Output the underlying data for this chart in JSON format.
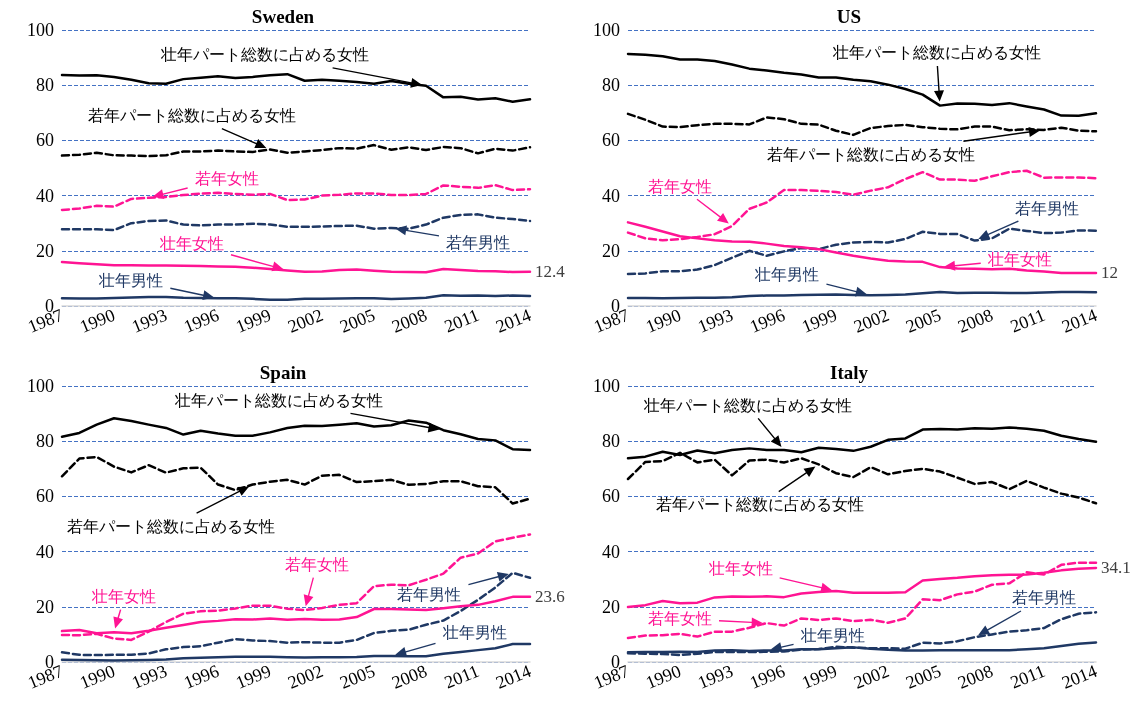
{
  "chart_data": [
    {
      "type": "line",
      "title": "Sweden",
      "x": [
        1987,
        1988,
        1989,
        1990,
        1991,
        1992,
        1993,
        1994,
        1995,
        1996,
        1997,
        1998,
        1999,
        2000,
        2001,
        2002,
        2003,
        2004,
        2005,
        2006,
        2007,
        2008,
        2009,
        2010,
        2011,
        2012,
        2013,
        2014
      ],
      "xlim": [
        1987,
        2014
      ],
      "xticks": [
        1987,
        1990,
        1993,
        1996,
        1999,
        2002,
        2005,
        2008,
        2011,
        2014
      ],
      "ylim": [
        0,
        100
      ],
      "yticks": [
        0,
        20,
        40,
        60,
        80,
        100
      ],
      "grid": "y",
      "series": [
        {
          "name": "壮年パート総数に占める女性",
          "color": "#000000",
          "line_style": "solid",
          "values": [
            83.7,
            83.5,
            83.6,
            83,
            82,
            80.7,
            80.5,
            82.2,
            82.7,
            83.2,
            82.6,
            83,
            83.6,
            84,
            81.6,
            82,
            81.6,
            81.2,
            80.5,
            81.5,
            80.5,
            79.8,
            75.6,
            75.8,
            74.8,
            75.3,
            74,
            74.9
          ]
        },
        {
          "name": "若年パート総数に占める女性",
          "color": "#000000",
          "line_style": "dashed",
          "values": [
            54.5,
            54.8,
            55.5,
            54.6,
            54.5,
            54.3,
            54.6,
            56,
            56,
            56.3,
            56,
            55.8,
            56.7,
            55.5,
            56,
            56.5,
            57.2,
            57,
            58.3,
            56.6,
            57.5,
            56.5,
            57.6,
            57.2,
            55.3,
            57,
            56.3,
            57.5
          ]
        },
        {
          "name": "若年女性",
          "color": "#ff1493",
          "line_style": "dashed",
          "values": [
            34.8,
            35.3,
            36.3,
            36,
            38.8,
            39.2,
            39.5,
            40.2,
            40.7,
            41,
            40.6,
            40.3,
            40.6,
            38.4,
            38.6,
            40,
            40.3,
            40.8,
            40.8,
            40.2,
            40.2,
            40.6,
            43.7,
            43.2,
            42.8,
            43.8,
            42,
            42.3
          ]
        },
        {
          "name": "若年男性",
          "color": "#1f3864",
          "line_style": "dashed",
          "values": [
            27.8,
            27.8,
            27.8,
            27.5,
            30,
            30.8,
            31,
            29.5,
            29.2,
            29.5,
            29.5,
            29.8,
            29.5,
            28.7,
            28.7,
            28.8,
            29,
            29.1,
            28,
            28.3,
            28,
            29.5,
            32,
            33,
            33.2,
            32,
            31.5,
            30.8
          ]
        },
        {
          "name": "壮年女性",
          "color": "#ff1493",
          "line_style": "solid",
          "values": [
            15.9,
            15.5,
            15.1,
            14.8,
            14.8,
            14.7,
            14.7,
            14.6,
            14.5,
            14.3,
            14.2,
            13.9,
            13.4,
            12.9,
            12.4,
            12.5,
            13,
            13.2,
            12.8,
            12.4,
            12.3,
            12.2,
            13.4,
            13,
            12.7,
            12.6,
            12.3,
            12.4
          ],
          "value_labels": [
            null,
            null,
            null,
            null,
            null,
            null,
            null,
            null,
            null,
            null,
            null,
            null,
            null,
            null,
            null,
            null,
            null,
            null,
            null,
            null,
            null,
            null,
            null,
            null,
            null,
            null,
            null,
            "12.4"
          ]
        },
        {
          "name": "壮年男性",
          "color": "#1f3864",
          "line_style": "solid",
          "values": [
            2.8,
            2.7,
            2.7,
            2.9,
            3.1,
            3.3,
            3.3,
            3,
            2.9,
            2.8,
            2.8,
            2.6,
            2.3,
            2.3,
            2.6,
            2.6,
            2.7,
            2.8,
            2.8,
            2.5,
            2.7,
            3,
            3.9,
            3.7,
            3.8,
            3.6,
            3.8,
            3.6
          ]
        }
      ]
    },
    {
      "type": "line",
      "title": "US",
      "x": [
        1987,
        1988,
        1989,
        1990,
        1991,
        1992,
        1993,
        1994,
        1995,
        1996,
        1997,
        1998,
        1999,
        2000,
        2001,
        2002,
        2003,
        2004,
        2005,
        2006,
        2007,
        2008,
        2009,
        2010,
        2011,
        2012,
        2013,
        2014
      ],
      "xlim": [
        1987,
        2014
      ],
      "xticks": [
        1987,
        1990,
        1993,
        1996,
        1999,
        2002,
        2005,
        2008,
        2011,
        2014
      ],
      "ylim": [
        0,
        100
      ],
      "yticks": [
        0,
        20,
        40,
        60,
        80,
        100
      ],
      "grid": "y",
      "series": [
        {
          "name": "壮年パート総数に占める女性",
          "color": "#000000",
          "line_style": "solid",
          "values": [
            91.3,
            91,
            90.5,
            89.3,
            89.3,
            88.8,
            87.5,
            86,
            85.3,
            84.5,
            83.9,
            82.8,
            82.8,
            82,
            81.4,
            80.2,
            78.6,
            76.6,
            72.6,
            73.4,
            73.3,
            72.8,
            73.5,
            72.3,
            71.2,
            69,
            68.9,
            69.8
          ]
        },
        {
          "name": "若年パート総数に占める女性",
          "color": "#000000",
          "line_style": "dashed",
          "values": [
            69.6,
            67.5,
            65,
            64.8,
            65.5,
            66,
            66,
            65.8,
            68.3,
            67.7,
            66,
            65.7,
            63.5,
            62,
            64.5,
            65.2,
            65.6,
            64.8,
            64.2,
            64,
            65,
            65,
            63.7,
            64,
            63.8,
            64.6,
            63.5,
            63.3
          ]
        },
        {
          "name": "若年女性",
          "color": "#ff1493",
          "line_style": "dashed",
          "values": [
            26.6,
            24.5,
            23.8,
            24.2,
            25,
            26,
            29,
            35.2,
            37.5,
            42,
            42,
            41.7,
            41.3,
            40.3,
            41.8,
            43,
            46,
            48.5,
            45.8,
            45.8,
            45.4,
            47,
            48.5,
            49,
            46.5,
            46.6,
            46.6,
            46.3
          ]
        },
        {
          "name": "若年男性",
          "color": "#1f3864",
          "line_style": "dashed",
          "values": [
            11.6,
            11.8,
            12.6,
            12.6,
            13.2,
            14.8,
            17.5,
            20,
            18.2,
            19.8,
            21,
            20.6,
            22.2,
            23,
            23.2,
            23,
            24.3,
            26.9,
            26.1,
            26.1,
            23.7,
            24.5,
            28,
            27.2,
            26.4,
            26.6,
            27.4,
            27.3
          ]
        },
        {
          "name": "壮年女性",
          "color": "#ff1493",
          "line_style": "solid",
          "values": [
            30.3,
            28.7,
            27,
            25.3,
            24.5,
            23.8,
            23.4,
            23.3,
            22.6,
            21.7,
            21.3,
            20.6,
            19.4,
            18.2,
            17.2,
            16.4,
            16.1,
            16,
            14.1,
            13.6,
            13.5,
            13.3,
            13.5,
            12.9,
            12.5,
            12,
            12,
            12
          ],
          "value_labels": [
            null,
            null,
            null,
            null,
            null,
            null,
            null,
            null,
            null,
            null,
            null,
            null,
            null,
            null,
            null,
            null,
            null,
            null,
            null,
            null,
            null,
            null,
            null,
            null,
            null,
            null,
            null,
            "12"
          ]
        },
        {
          "name": "壮年男性",
          "color": "#1f3864",
          "line_style": "solid",
          "values": [
            2.9,
            2.9,
            2.8,
            2.9,
            3,
            3,
            3.2,
            3.6,
            3.8,
            3.8,
            4,
            4.1,
            4.2,
            4,
            3.9,
            4,
            4.2,
            4.6,
            5.1,
            4.7,
            4.8,
            4.8,
            4.7,
            4.7,
            4.9,
            5.1,
            5.1,
            5
          ]
        }
      ]
    },
    {
      "type": "line",
      "title": "Spain",
      "x": [
        1987,
        1988,
        1989,
        1990,
        1991,
        1992,
        1993,
        1994,
        1995,
        1996,
        1997,
        1998,
        1999,
        2000,
        2001,
        2002,
        2003,
        2004,
        2005,
        2006,
        2007,
        2008,
        2009,
        2010,
        2011,
        2012,
        2013,
        2014
      ],
      "xlim": [
        1987,
        2014
      ],
      "xticks": [
        1987,
        1990,
        1993,
        1996,
        1999,
        2002,
        2005,
        2008,
        2011,
        2014
      ],
      "ylim": [
        0,
        100
      ],
      "yticks": [
        0,
        20,
        40,
        60,
        80,
        100
      ],
      "grid": "y",
      "series": [
        {
          "name": "壮年パート総数に占める女性",
          "color": "#000000",
          "line_style": "solid",
          "values": [
            81.6,
            83,
            86,
            88.3,
            87.3,
            86,
            84.8,
            82.4,
            83.8,
            82.8,
            82,
            82,
            83.2,
            84.8,
            85.6,
            85.5,
            86,
            86.5,
            85.3,
            85.8,
            87.5,
            86.7,
            84,
            82.5,
            80.8,
            80.3,
            77.1,
            76.8
          ]
        },
        {
          "name": "若年パート総数に占める女性",
          "color": "#000000",
          "line_style": "dashed",
          "values": [
            67.3,
            73.7,
            74.3,
            70.8,
            68.7,
            71.3,
            68.6,
            70.2,
            70.4,
            64.3,
            62.3,
            64.3,
            65.3,
            66,
            64.3,
            67.5,
            67.8,
            65.2,
            65.5,
            66,
            64.2,
            64.5,
            65.5,
            65.5,
            63.7,
            63.3,
            57.4,
            59.2
          ]
        },
        {
          "name": "若年女性",
          "color": "#ff1493",
          "line_style": "dashed",
          "values": [
            9.8,
            9.7,
            10.2,
            8.5,
            8,
            11,
            14.5,
            17.5,
            18.4,
            18.6,
            19.4,
            20.4,
            20.4,
            19.3,
            18.8,
            19.6,
            20.7,
            21.3,
            27.5,
            28,
            27.8,
            29.8,
            32,
            37.8,
            39.3,
            43.7,
            45,
            46.2
          ]
        },
        {
          "name": "若年男性",
          "color": "#1f3864",
          "line_style": "dashed",
          "values": [
            3.5,
            2.6,
            2.5,
            2.6,
            2.6,
            3.1,
            4.6,
            5.4,
            5.7,
            7,
            8.3,
            7.8,
            7.6,
            7,
            7.2,
            7,
            7,
            8,
            10.5,
            11.3,
            11.7,
            13.5,
            15,
            18.5,
            22.5,
            27,
            32.3,
            30.5
          ]
        },
        {
          "name": "壮年女性",
          "color": "#ff1493",
          "line_style": "solid",
          "values": [
            11.2,
            11.6,
            10.4,
            10.8,
            10.4,
            11.3,
            12.4,
            13.4,
            14.5,
            14.9,
            15.5,
            15.4,
            15.8,
            15.3,
            15.6,
            15.3,
            15.4,
            16.3,
            19.2,
            19.2,
            19,
            18.8,
            19.5,
            20.2,
            20.7,
            22,
            23.6,
            23.6
          ],
          "value_labels": [
            null,
            null,
            null,
            null,
            null,
            null,
            null,
            null,
            null,
            null,
            null,
            null,
            null,
            null,
            null,
            null,
            null,
            null,
            null,
            null,
            null,
            null,
            null,
            null,
            null,
            null,
            null,
            "23.6"
          ]
        },
        {
          "name": "壮年男性",
          "color": "#1f3864",
          "line_style": "solid",
          "values": [
            0.8,
            0.7,
            0.6,
            0.5,
            0.6,
            0.7,
            0.9,
            1.4,
            1.5,
            1.7,
            1.9,
            1.9,
            1.9,
            1.7,
            1.6,
            1.7,
            1.7,
            1.8,
            2.2,
            2.2,
            2.1,
            2.1,
            3,
            3.6,
            4.3,
            5,
            6.5,
            6.5
          ]
        }
      ]
    },
    {
      "type": "line",
      "title": "Italy",
      "x": [
        1987,
        1988,
        1989,
        1990,
        1991,
        1992,
        1993,
        1994,
        1995,
        1996,
        1997,
        1998,
        1999,
        2000,
        2001,
        2002,
        2003,
        2004,
        2005,
        2006,
        2007,
        2008,
        2009,
        2010,
        2011,
        2012,
        2013,
        2014
      ],
      "xlim": [
        1987,
        2014
      ],
      "xticks": [
        1987,
        1990,
        1993,
        1996,
        1999,
        2002,
        2005,
        2008,
        2011,
        2014
      ],
      "ylim": [
        0,
        100
      ],
      "yticks": [
        0,
        20,
        40,
        60,
        80,
        100
      ],
      "grid": "y",
      "series": [
        {
          "name": "壮年パート総数に占める女性",
          "color": "#000000",
          "line_style": "solid",
          "values": [
            73.8,
            74.4,
            76.2,
            75,
            76.6,
            75.6,
            76.8,
            77.4,
            76.8,
            76.8,
            76,
            77.6,
            77.2,
            76.5,
            78,
            80.5,
            81,
            84.2,
            84.4,
            84.2,
            84.7,
            84.5,
            85,
            84.5,
            83.8,
            82,
            80.8,
            79.8
          ]
        },
        {
          "name": "若年パート総数に占める女性",
          "color": "#000000",
          "line_style": "dashed",
          "values": [
            66.3,
            72.5,
            72.8,
            75.8,
            72.3,
            73.3,
            67.6,
            73,
            73.3,
            72.3,
            73.8,
            71.6,
            68.4,
            67,
            70.6,
            68,
            69.2,
            70,
            69,
            66.8,
            64.5,
            65.2,
            62.6,
            65.6,
            63.2,
            61,
            59.6,
            57.5
          ]
        },
        {
          "name": "若年女性",
          "color": "#ff1493",
          "line_style": "dashed",
          "values": [
            8.7,
            9.6,
            9.7,
            10.2,
            9.2,
            11,
            11,
            12.4,
            14.1,
            13.2,
            15.8,
            15.2,
            15.8,
            14.8,
            15.3,
            14.2,
            15.8,
            22.7,
            22.4,
            24.5,
            25.5,
            28,
            28.5,
            32.5,
            31.7,
            35.2,
            36,
            36
          ]
        },
        {
          "name": "若年男性",
          "color": "#1f3864",
          "line_style": "dashed",
          "values": [
            3.2,
            3,
            2.9,
            2.5,
            3,
            3.6,
            3.6,
            3.6,
            3.7,
            3.8,
            4.5,
            4.7,
            5.5,
            5.2,
            5,
            5,
            4.8,
            7,
            6.7,
            7.5,
            9,
            10,
            11,
            11.5,
            12.3,
            15.5,
            17.5,
            18
          ]
        },
        {
          "name": "壮年女性",
          "color": "#ff1493",
          "line_style": "solid",
          "values": [
            19.9,
            20.6,
            22.1,
            21.3,
            21.5,
            23.4,
            23.7,
            23.6,
            23.8,
            23.5,
            24.8,
            25.4,
            25.7,
            25.1,
            25.1,
            25.1,
            25.3,
            29.5,
            30.1,
            30.5,
            31.1,
            31.4,
            31.6,
            31.7,
            32.3,
            33.2,
            33.8,
            34.1
          ],
          "value_labels": [
            null,
            null,
            null,
            null,
            null,
            null,
            null,
            null,
            null,
            null,
            null,
            null,
            null,
            null,
            null,
            null,
            null,
            null,
            null,
            null,
            null,
            null,
            null,
            null,
            null,
            null,
            null,
            "34.1"
          ]
        },
        {
          "name": "壮年男性",
          "color": "#1f3864",
          "line_style": "solid",
          "values": [
            3.5,
            3.6,
            3.6,
            3.7,
            3.6,
            4.2,
            4.3,
            4,
            4.2,
            4.2,
            4.6,
            4.6,
            5,
            5.3,
            4.8,
            4.4,
            4.2,
            4.2,
            4.3,
            4.3,
            4.3,
            4.3,
            4.3,
            4.6,
            5,
            5.8,
            6.6,
            7.1
          ]
        }
      ]
    }
  ]
}
